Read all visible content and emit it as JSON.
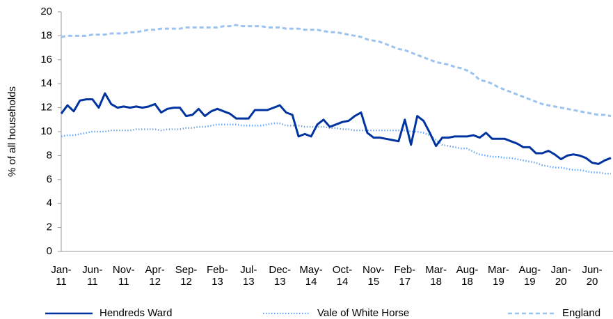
{
  "chart_data": {
    "type": "line",
    "y_label": "% of all households",
    "categories": [
      "Jan-11",
      null,
      null,
      null,
      null,
      "Jun-11",
      null,
      null,
      null,
      null,
      "Nov-11",
      null,
      null,
      null,
      null,
      "Apr-12",
      null,
      null,
      null,
      null,
      "Sep-12",
      null,
      null,
      null,
      null,
      "Feb-13",
      null,
      null,
      null,
      null,
      "Jul-13",
      null,
      null,
      null,
      null,
      "Dec-13",
      null,
      null,
      null,
      null,
      "May-14",
      null,
      null,
      null,
      null,
      "Oct-14",
      null,
      null,
      null,
      null,
      "Nov-15",
      null,
      null,
      null,
      null,
      "Feb-17",
      null,
      null,
      null,
      null,
      "Mar-18",
      null,
      null,
      null,
      null,
      "Aug-18",
      null,
      null,
      null,
      null,
      "Mar-19",
      null,
      null,
      null,
      null,
      "Aug-19",
      null,
      null,
      null,
      null,
      "Jan-20",
      null,
      null,
      null,
      null,
      "Jun-20",
      null,
      null,
      null
    ],
    "series": [
      {
        "name": "Hendreds Ward",
        "color": "#0033a0",
        "style": "solid",
        "values": [
          11.5,
          12.2,
          11.7,
          12.6,
          12.7,
          12.7,
          12.0,
          13.2,
          12.3,
          12.0,
          12.1,
          12.0,
          12.1,
          12.0,
          12.1,
          12.3,
          11.6,
          11.9,
          12.0,
          12.0,
          11.3,
          11.4,
          11.9,
          11.3,
          11.7,
          11.9,
          11.7,
          11.5,
          11.1,
          11.1,
          11.1,
          11.8,
          11.8,
          11.8,
          12.0,
          12.2,
          11.6,
          11.4,
          9.6,
          9.8,
          9.6,
          10.6,
          11.0,
          10.4,
          10.6,
          10.8,
          10.9,
          11.3,
          11.6,
          9.9,
          9.5,
          9.5,
          9.4,
          9.3,
          9.2,
          11.0,
          8.9,
          11.3,
          10.9,
          9.9,
          8.8,
          9.5,
          9.5,
          9.6,
          9.6,
          9.6,
          9.7,
          9.5,
          9.9,
          9.4,
          9.4,
          9.4,
          9.2,
          9.0,
          8.7,
          8.7,
          8.2,
          8.2,
          8.4,
          8.1,
          7.7,
          8.0,
          8.1,
          8.0,
          7.8,
          7.4,
          7.3,
          7.6,
          7.8
        ]
      },
      {
        "name": "Vale of White Horse",
        "color": "#6fa8f0",
        "style": "dotted",
        "values": [
          9.6,
          9.7,
          9.7,
          9.8,
          9.9,
          10.0,
          10.0,
          10.0,
          10.1,
          10.1,
          10.1,
          10.1,
          10.2,
          10.2,
          10.2,
          10.2,
          10.1,
          10.2,
          10.2,
          10.2,
          10.3,
          10.3,
          10.4,
          10.4,
          10.5,
          10.6,
          10.6,
          10.6,
          10.6,
          10.5,
          10.5,
          10.5,
          10.5,
          10.6,
          10.7,
          10.7,
          10.5,
          10.5,
          10.5,
          10.4,
          10.4,
          10.4,
          10.4,
          10.3,
          10.3,
          10.2,
          10.2,
          10.1,
          10.1,
          10.1,
          10.1,
          10.1,
          10.1,
          10.1,
          10.1,
          10.1,
          10.0,
          10.0,
          9.9,
          9.7,
          9.3,
          8.9,
          8.8,
          8.7,
          8.6,
          8.6,
          8.3,
          8.1,
          8.0,
          7.9,
          7.9,
          7.8,
          7.8,
          7.7,
          7.6,
          7.5,
          7.4,
          7.2,
          7.1,
          7.0,
          7.0,
          6.9,
          6.8,
          6.8,
          6.7,
          6.6,
          6.6,
          6.5,
          6.5
        ]
      },
      {
        "name": "England",
        "color": "#9cc3f0",
        "style": "dashed",
        "values": [
          17.9,
          18.0,
          18.0,
          18.0,
          18.0,
          18.1,
          18.1,
          18.1,
          18.2,
          18.2,
          18.2,
          18.3,
          18.3,
          18.4,
          18.5,
          18.5,
          18.6,
          18.6,
          18.6,
          18.6,
          18.7,
          18.7,
          18.7,
          18.7,
          18.7,
          18.7,
          18.8,
          18.8,
          18.9,
          18.8,
          18.8,
          18.8,
          18.8,
          18.7,
          18.7,
          18.7,
          18.6,
          18.6,
          18.6,
          18.5,
          18.5,
          18.5,
          18.4,
          18.3,
          18.3,
          18.2,
          18.1,
          18.0,
          17.9,
          17.7,
          17.6,
          17.5,
          17.3,
          17.1,
          16.9,
          16.8,
          16.6,
          16.4,
          16.2,
          16.0,
          15.8,
          15.7,
          15.6,
          15.4,
          15.3,
          15.1,
          14.8,
          14.3,
          14.2,
          14.0,
          13.7,
          13.5,
          13.3,
          13.1,
          12.9,
          12.7,
          12.5,
          12.3,
          12.2,
          12.1,
          12.0,
          11.9,
          11.8,
          11.7,
          11.6,
          11.5,
          11.4,
          11.4,
          11.3
        ]
      }
    ],
    "ylim": [
      0,
      20
    ],
    "yticks": [
      0,
      2,
      4,
      6,
      8,
      10,
      12,
      14,
      16,
      18,
      20
    ],
    "grid": false,
    "legend": "bottom"
  }
}
